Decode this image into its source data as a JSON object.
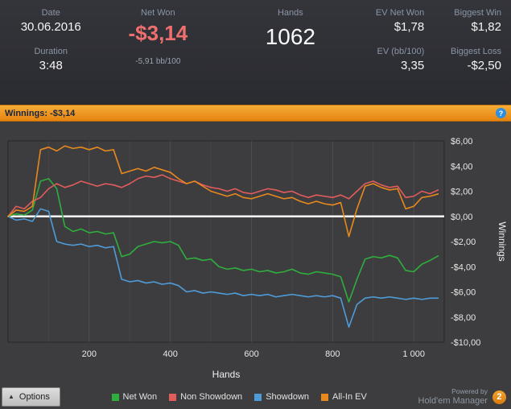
{
  "stats": {
    "date_label": "Date",
    "date_value": "30.06.2016",
    "duration_label": "Duration",
    "duration_value": "3:48",
    "net_won_label": "Net Won",
    "net_won_value": "-$3,14",
    "net_won_sub": "-5,91 bb/100",
    "hands_label": "Hands",
    "hands_value": "1062",
    "ev_net_won_label": "EV Net Won",
    "ev_net_won_value": "$1,78",
    "ev_bb_label": "EV (bb/100)",
    "ev_bb_value": "3,35",
    "biggest_win_label": "Biggest Win",
    "biggest_win_value": "$1,82",
    "biggest_loss_label": "Biggest Loss",
    "biggest_loss_value": "-$2,50"
  },
  "title_bar": {
    "text": "Winnings: -$3,14",
    "info_icon_glyph": "?"
  },
  "chart_data": {
    "type": "line",
    "title": "Winnings: -$3,14",
    "xlabel": "Hands",
    "ylabel": "Winnings",
    "x_max": 1075,
    "y_min": -10,
    "y_max": 6,
    "grid": "vertical-only",
    "legend_position": "bottom",
    "x_ticks": [
      {
        "value": 200,
        "label": "200"
      },
      {
        "value": 400,
        "label": "400"
      },
      {
        "value": 600,
        "label": "600"
      },
      {
        "value": 800,
        "label": "800"
      },
      {
        "value": 1000,
        "label": "1 000"
      }
    ],
    "y_ticks": [
      {
        "value": 6,
        "label": "$6,00"
      },
      {
        "value": 4,
        "label": "$4,00"
      },
      {
        "value": 2,
        "label": "$2,00"
      },
      {
        "value": 0,
        "label": "$0,00"
      },
      {
        "value": -2,
        "label": "-$2,00"
      },
      {
        "value": -4,
        "label": "-$4,00"
      },
      {
        "value": -6,
        "label": "-$6,00"
      },
      {
        "value": -8,
        "label": "-$8,00"
      },
      {
        "value": -10,
        "label": "-$10,00"
      }
    ],
    "zero_line": 0,
    "x": [
      0,
      20,
      40,
      60,
      80,
      100,
      120,
      140,
      160,
      180,
      200,
      220,
      240,
      260,
      280,
      300,
      320,
      340,
      360,
      380,
      400,
      420,
      440,
      460,
      480,
      500,
      520,
      540,
      560,
      580,
      600,
      620,
      640,
      660,
      680,
      700,
      720,
      740,
      760,
      780,
      800,
      820,
      840,
      860,
      880,
      900,
      920,
      940,
      960,
      980,
      1000,
      1020,
      1040,
      1060
    ],
    "series": [
      {
        "name": "Net Won",
        "color": "#2fae3e",
        "values": [
          0,
          0.2,
          0.1,
          0.5,
          2.8,
          3.0,
          2.2,
          -0.8,
          -1.2,
          -1.0,
          -1.3,
          -1.2,
          -1.4,
          -1.3,
          -3.2,
          -3.0,
          -2.4,
          -2.2,
          -2.0,
          -2.1,
          -2.0,
          -2.3,
          -3.4,
          -3.3,
          -3.5,
          -3.4,
          -4.0,
          -4.2,
          -4.1,
          -4.3,
          -4.2,
          -4.4,
          -4.3,
          -4.5,
          -4.4,
          -4.2,
          -4.5,
          -4.6,
          -4.4,
          -4.5,
          -4.6,
          -4.8,
          -6.8,
          -5.0,
          -3.4,
          -3.2,
          -3.3,
          -3.1,
          -3.3,
          -4.3,
          -4.4,
          -3.8,
          -3.5,
          -3.14
        ]
      },
      {
        "name": "Non Showdown",
        "color": "#e25c5c",
        "values": [
          0,
          0.8,
          0.6,
          1.2,
          1.5,
          2.2,
          2.6,
          2.3,
          2.5,
          2.8,
          2.6,
          2.4,
          2.6,
          2.5,
          2.3,
          2.6,
          3.0,
          3.2,
          3.1,
          3.3,
          3.0,
          2.8,
          2.6,
          2.8,
          2.5,
          2.3,
          2.2,
          2.0,
          2.2,
          1.9,
          1.8,
          2.0,
          2.2,
          2.1,
          1.9,
          2.0,
          1.7,
          1.5,
          1.7,
          1.6,
          1.5,
          1.7,
          1.4,
          2.0,
          2.6,
          2.8,
          2.5,
          2.3,
          2.4,
          1.5,
          1.6,
          2.0,
          1.8,
          2.1
        ]
      },
      {
        "name": "Showdown",
        "color": "#4f9bd8",
        "values": [
          0,
          -0.3,
          -0.2,
          -0.4,
          0.6,
          0.4,
          -2.0,
          -2.2,
          -2.3,
          -2.2,
          -2.4,
          -2.3,
          -2.5,
          -2.4,
          -5.0,
          -5.2,
          -5.1,
          -5.3,
          -5.2,
          -5.4,
          -5.3,
          -5.5,
          -6.0,
          -5.9,
          -6.1,
          -6.0,
          -6.1,
          -6.2,
          -6.1,
          -6.3,
          -6.2,
          -6.3,
          -6.2,
          -6.4,
          -6.3,
          -6.2,
          -6.3,
          -6.4,
          -6.3,
          -6.4,
          -6.3,
          -6.5,
          -8.8,
          -7.0,
          -6.5,
          -6.4,
          -6.5,
          -6.4,
          -6.5,
          -6.6,
          -6.5,
          -6.6,
          -6.5,
          -6.5
        ]
      },
      {
        "name": "All-In EV",
        "color": "#e8891d",
        "values": [
          0,
          0.5,
          0.4,
          0.8,
          5.3,
          5.5,
          5.2,
          5.6,
          5.4,
          5.5,
          5.3,
          5.5,
          5.2,
          5.3,
          3.4,
          3.6,
          3.8,
          3.6,
          3.9,
          3.7,
          3.5,
          3.0,
          2.6,
          2.8,
          2.4,
          2.0,
          1.8,
          1.6,
          1.8,
          1.5,
          1.4,
          1.6,
          1.8,
          1.6,
          1.4,
          1.5,
          1.2,
          1.0,
          1.2,
          1.0,
          0.9,
          1.1,
          -1.6,
          0.6,
          2.4,
          2.6,
          2.3,
          2.1,
          2.2,
          0.6,
          0.8,
          1.5,
          1.6,
          1.78
        ]
      }
    ]
  },
  "footer": {
    "options_label": "Options",
    "options_icon_glyph": "▲",
    "powered_by": "Powered by",
    "brand": "Hold'em Manager",
    "brand_badge": "2"
  }
}
